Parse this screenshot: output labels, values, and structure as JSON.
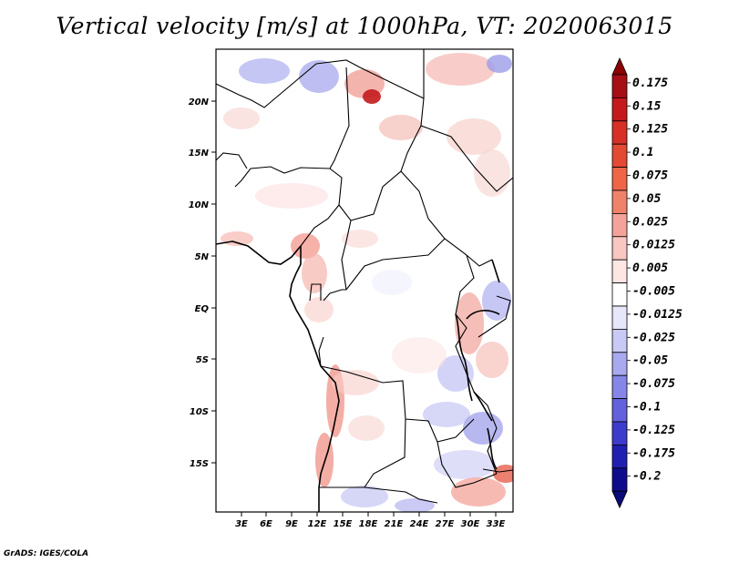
{
  "title": "Vertical velocity [m/s] at 1000hPa, VT: 2020063015",
  "footer": "GrADS: IGES/COLA",
  "map": {
    "lat_labels": [
      "20N",
      "15N",
      "10N",
      "5N",
      "EQ",
      "5S",
      "10S",
      "15S"
    ],
    "lon_labels": [
      "3E",
      "6E",
      "9E",
      "12E",
      "15E",
      "18E",
      "21E",
      "24E",
      "27E",
      "30E",
      "33E"
    ]
  },
  "colorbar": {
    "labels": [
      "0.175",
      "0.15",
      "0.125",
      "0.1",
      "0.075",
      "0.05",
      "0.025",
      "0.0125",
      "0.005",
      "-0.005",
      "-0.0125",
      "-0.025",
      "-0.05",
      "-0.075",
      "-0.1",
      "-0.125",
      "-0.175",
      "-0.2"
    ],
    "colors": [
      "#a50f15",
      "#c41a1c",
      "#d73027",
      "#e34a33",
      "#ef6548",
      "#f1826a",
      "#f4a39a",
      "#f8c7c1",
      "#fde6e4",
      "#ffffff",
      "#e7e7fb",
      "#c9c9f5",
      "#a9a9ef",
      "#8686e8",
      "#6262dc",
      "#3c3ccc",
      "#2020b0",
      "#0d0d8c"
    ],
    "top_arrow_color": "#8b0000",
    "bottom_arrow_color": "#0a0a78"
  }
}
